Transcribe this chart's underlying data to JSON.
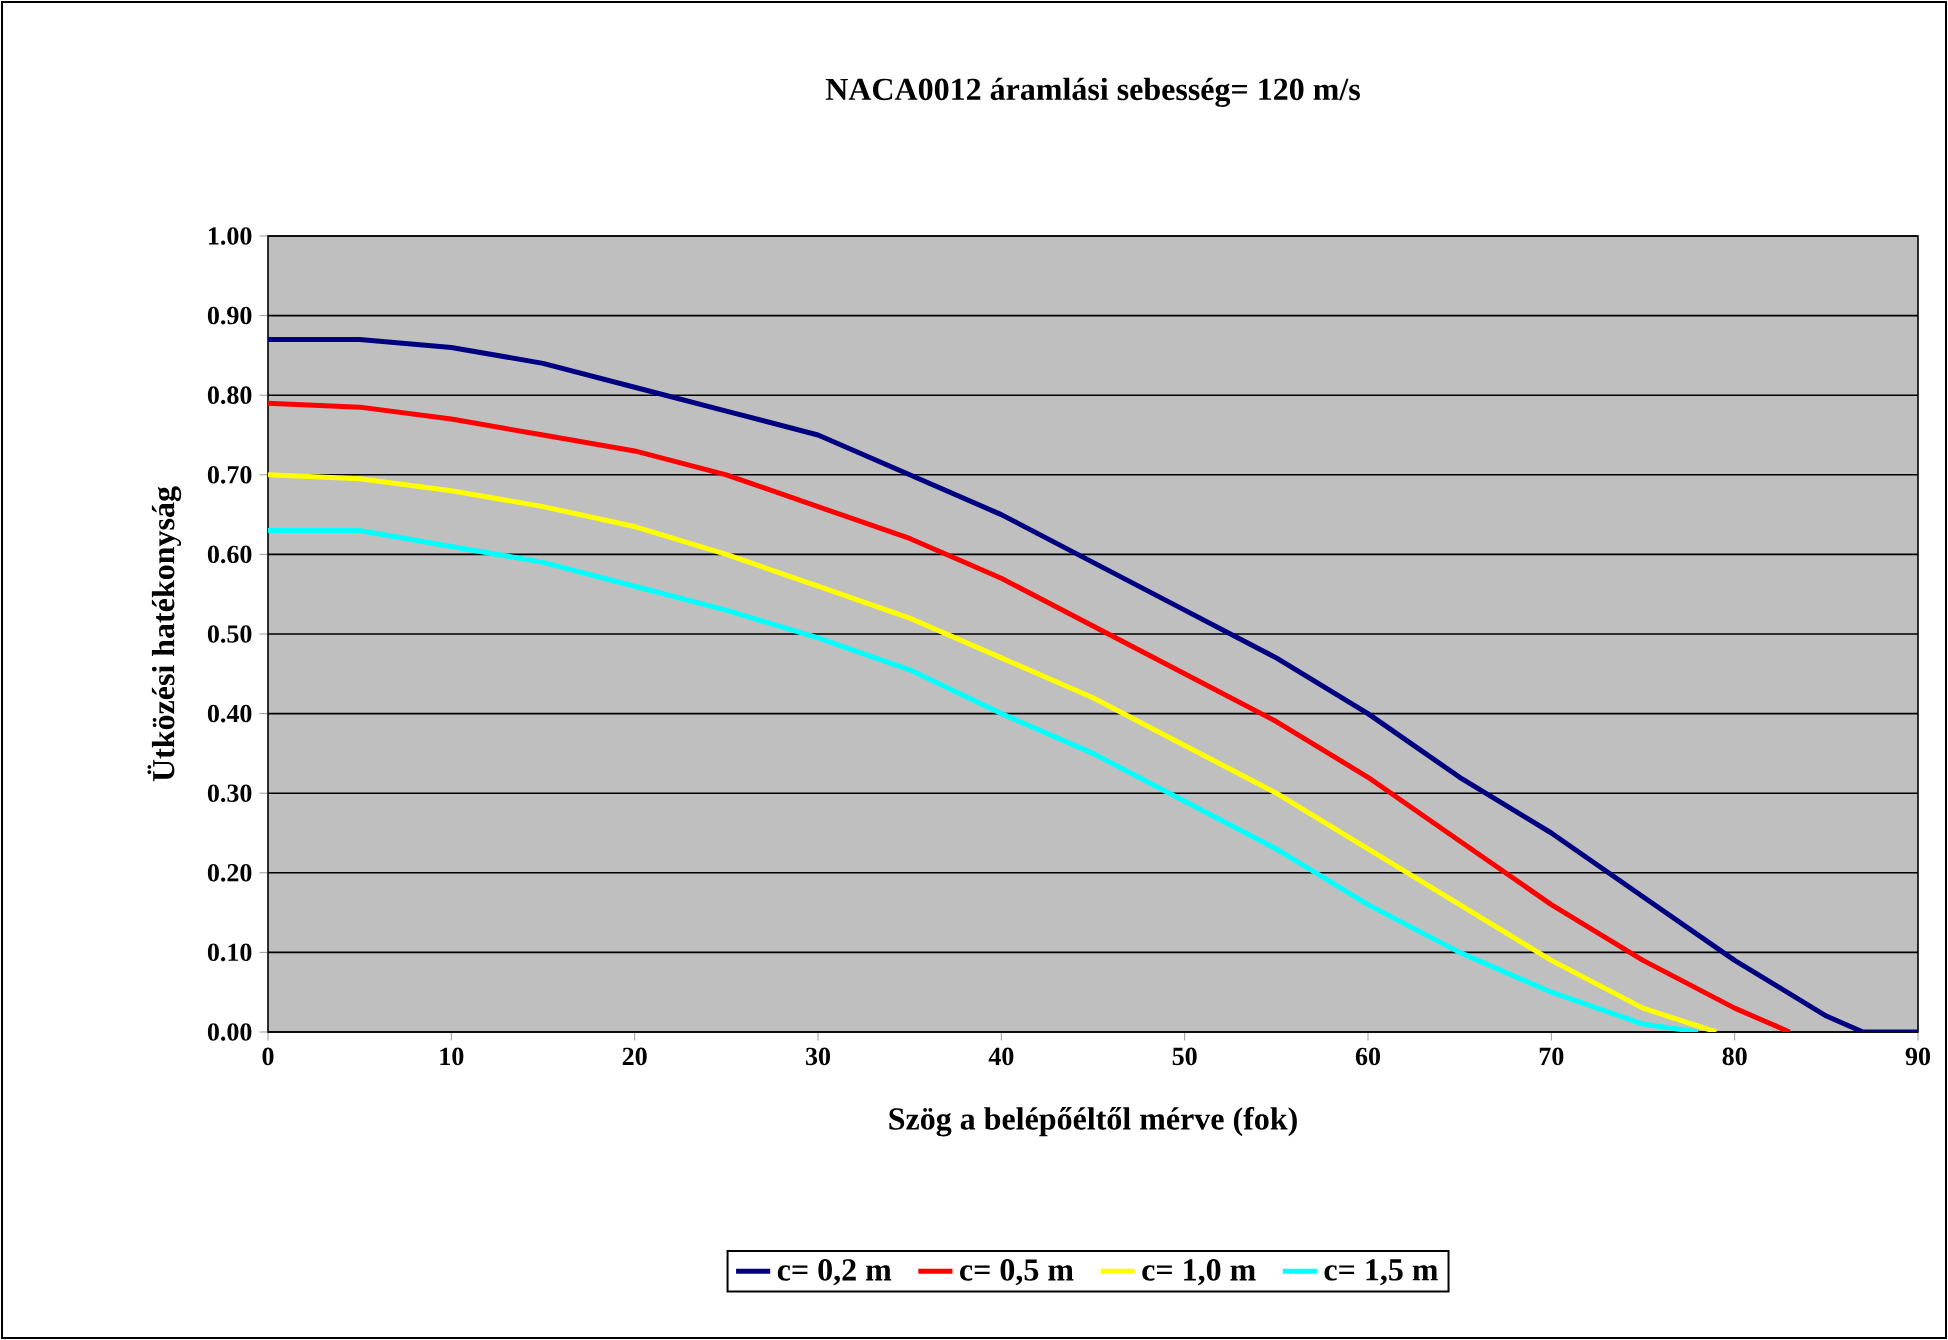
{
  "chart_data": {
    "type": "line",
    "title": "NACA0012 áramlási sebesség= 120 m/s",
    "xlabel": "Szög a belépőéltől mérve (fok)",
    "ylabel": "Ütközési hatékonyság",
    "xlim": [
      0,
      90
    ],
    "xticks": [
      0,
      10,
      20,
      30,
      40,
      50,
      60,
      70,
      80,
      90
    ],
    "ylim": [
      0,
      1
    ],
    "yticks": [
      {
        "value": 0,
        "label": "0.00"
      },
      {
        "value": 0.1,
        "label": "0.10"
      },
      {
        "value": 0.2,
        "label": "0.20"
      },
      {
        "value": 0.3,
        "label": "0.30"
      },
      {
        "value": 0.4,
        "label": "0.40"
      },
      {
        "value": 0.5,
        "label": "0.50"
      },
      {
        "value": 0.6,
        "label": "0.60"
      },
      {
        "value": 0.7,
        "label": "0.70"
      },
      {
        "value": 0.8,
        "label": "0.80"
      },
      {
        "value": 0.9,
        "label": "0.90"
      },
      {
        "value": 1,
        "label": "1.00"
      }
    ],
    "grid": "y",
    "legend": "bottom",
    "marker": "none",
    "line_style": "solid",
    "series": [
      {
        "name": "c= 0,2 m",
        "color": "#000080",
        "x": [
          0,
          5,
          10,
          15,
          20,
          25,
          30,
          35,
          40,
          45,
          50,
          55,
          60,
          65,
          70,
          75,
          80,
          85,
          87,
          90
        ],
        "values": [
          0.87,
          0.87,
          0.86,
          0.84,
          0.81,
          0.78,
          0.75,
          0.7,
          0.65,
          0.59,
          0.53,
          0.47,
          0.4,
          0.32,
          0.25,
          0.17,
          0.09,
          0.02,
          0.0,
          0.0
        ]
      },
      {
        "name": "c= 0,5 m",
        "color": "#ff0000",
        "x": [
          0,
          5,
          10,
          15,
          20,
          25,
          30,
          35,
          40,
          45,
          50,
          55,
          60,
          65,
          70,
          75,
          80,
          83
        ],
        "values": [
          0.79,
          0.785,
          0.77,
          0.75,
          0.73,
          0.7,
          0.66,
          0.62,
          0.57,
          0.51,
          0.45,
          0.39,
          0.32,
          0.24,
          0.16,
          0.09,
          0.03,
          0.0
        ]
      },
      {
        "name": "c= 1,0 m",
        "color": "#ffff00",
        "x": [
          0,
          5,
          10,
          15,
          20,
          25,
          30,
          35,
          40,
          45,
          50,
          55,
          60,
          65,
          70,
          75,
          79
        ],
        "values": [
          0.7,
          0.695,
          0.68,
          0.66,
          0.635,
          0.6,
          0.56,
          0.52,
          0.47,
          0.42,
          0.36,
          0.3,
          0.23,
          0.16,
          0.09,
          0.03,
          0.0
        ]
      },
      {
        "name": "c= 1,5 m",
        "color": "#00ffff",
        "x": [
          0,
          5,
          10,
          15,
          20,
          25,
          30,
          35,
          40,
          45,
          50,
          55,
          60,
          65,
          70,
          75,
          78
        ],
        "values": [
          0.63,
          0.63,
          0.61,
          0.59,
          0.56,
          0.53,
          0.495,
          0.455,
          0.4,
          0.35,
          0.29,
          0.23,
          0.16,
          0.1,
          0.05,
          0.01,
          0.0
        ]
      }
    ]
  }
}
